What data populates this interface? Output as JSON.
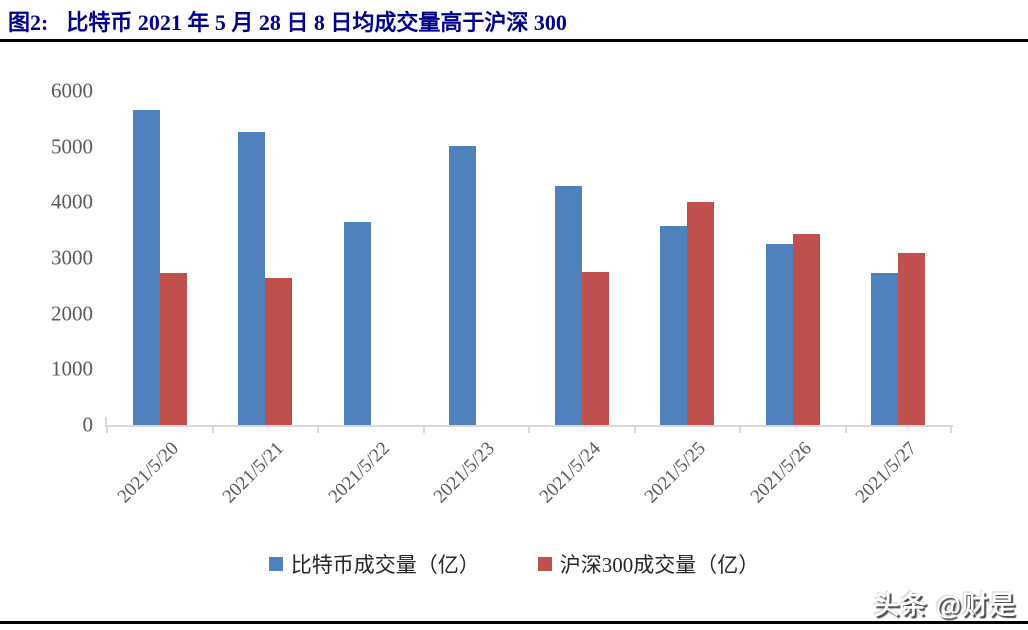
{
  "header": {
    "figure_label": "图2:",
    "title": "比特币 2021 年 5 月 28 日 8 日均成交量高于沪深 300"
  },
  "chart_data": {
    "type": "bar",
    "title": "比特币 2021 年 5 月 28 日 8 日均成交量高于沪深 300",
    "categories": [
      "2021/5/20",
      "2021/5/21",
      "2021/5/22",
      "2021/5/23",
      "2021/5/24",
      "2021/5/25",
      "2021/5/26",
      "2021/5/27"
    ],
    "series": [
      {
        "name": "比特币成交量（亿）",
        "color": "#4F81BD",
        "values": [
          5660,
          5260,
          3650,
          5010,
          4300,
          3580,
          3250,
          2730
        ]
      },
      {
        "name": "沪深300成交量（亿）",
        "color": "#C0504D",
        "values": [
          2730,
          2640,
          null,
          null,
          2750,
          4010,
          3430,
          3090
        ]
      }
    ],
    "xlabel": "",
    "ylabel": "",
    "ylim": [
      0,
      6000
    ],
    "yticks": [
      0,
      1000,
      2000,
      3000,
      4000,
      5000,
      6000
    ],
    "grid": false,
    "legend_position": "bottom",
    "axis_color": "#D9D9D9",
    "tick_label_color": "#595959"
  },
  "footer": {
    "watermark": "头条 @财是"
  }
}
